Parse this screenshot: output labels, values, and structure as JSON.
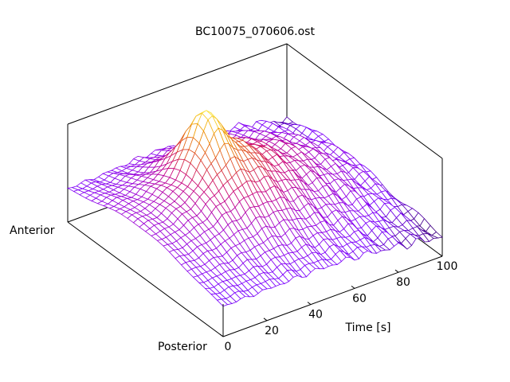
{
  "chart_data": {
    "type": "surface",
    "title": "BC10075_070606.ost",
    "xlabel": "Time [s]",
    "xlim": [
      0,
      100
    ],
    "xticks": [
      {
        "value": 0,
        "label": "0"
      },
      {
        "value": 20,
        "label": "20"
      },
      {
        "value": 40,
        "label": "40"
      },
      {
        "value": 60,
        "label": "60"
      },
      {
        "value": 80,
        "label": "80"
      },
      {
        "value": 100,
        "label": "100"
      }
    ],
    "ylabel_anterior": "Anterior",
    "ylabel_posterior": "Posterior",
    "grid": false,
    "colormap": [
      "#1a0033",
      "#7a00ff",
      "#a000d0",
      "#c8007a",
      "#e05020",
      "#f0a000",
      "#ffff60"
    ],
    "surface_peak": {
      "time": 35,
      "position": 0.62
    },
    "time_samples": 50,
    "position_samples": 26
  }
}
